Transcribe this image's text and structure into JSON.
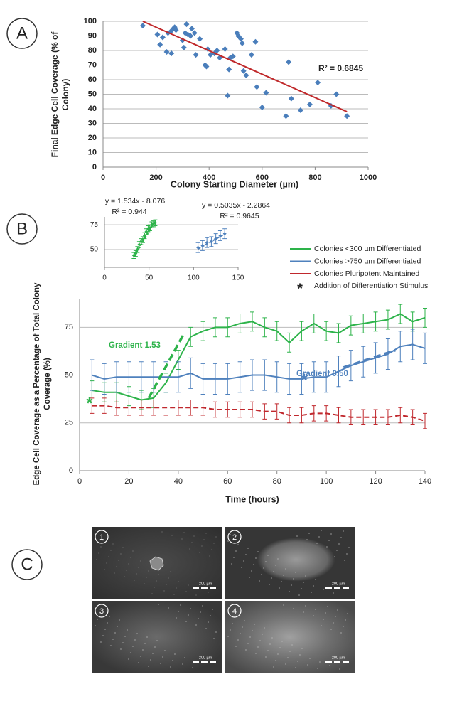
{
  "panel_labels": [
    "A",
    "B",
    "C"
  ],
  "chart_data": [
    {
      "type": "scatter",
      "xlabel": "Colony Starting Diameter (µm)",
      "ylabel": [
        "Final Edge Cell Coverage (% of",
        "Colony)"
      ],
      "xlim": [
        0,
        1000
      ],
      "xticks": [
        0,
        200,
        400,
        600,
        800,
        1000
      ],
      "ylim": [
        0,
        100
      ],
      "yticks": [
        0,
        10,
        20,
        30,
        40,
        50,
        60,
        70,
        80,
        90,
        100
      ],
      "grid": true,
      "color": "#4a7ebb",
      "x": [
        150,
        205,
        215,
        225,
        240,
        245,
        255,
        258,
        265,
        270,
        275,
        300,
        305,
        310,
        315,
        320,
        330,
        335,
        345,
        350,
        365,
        385,
        390,
        395,
        405,
        420,
        430,
        440,
        460,
        470,
        475,
        480,
        490,
        505,
        510,
        520,
        525,
        530,
        540,
        560,
        575,
        580,
        600,
        615,
        690,
        700,
        710,
        745,
        780,
        810,
        860,
        880,
        920
      ],
      "values": [
        97,
        91,
        84,
        89,
        79,
        92,
        93,
        78,
        95,
        96,
        94,
        87,
        82,
        92,
        98,
        91,
        90,
        95,
        92,
        77,
        88,
        70,
        69,
        81,
        77,
        78,
        80,
        75,
        81,
        49,
        67,
        75,
        76,
        92,
        90,
        88,
        85,
        66,
        63,
        77,
        86,
        55,
        41,
        51,
        35,
        72,
        47,
        39,
        43,
        58,
        42,
        50,
        35
      ],
      "trendline": {
        "color": "#c0292b",
        "x": [
          150,
          920
        ],
        "values": [
          100,
          38
        ],
        "label": "R² = 0.6845"
      }
    },
    {
      "type": "line",
      "xlabel": "Time (hours)",
      "ylabel": [
        "Edge Cell Coverage as a Percentage of Total Colony",
        "Coverage (%)"
      ],
      "xlim": [
        0,
        140
      ],
      "xticks": [
        0,
        20,
        40,
        60,
        80,
        100,
        120,
        140
      ],
      "ylim": [
        0,
        90
      ],
      "yticks": [
        0,
        25,
        50,
        75
      ],
      "grid": true,
      "x": [
        5,
        10,
        15,
        20,
        25,
        30,
        35,
        40,
        45,
        50,
        55,
        60,
        65,
        70,
        75,
        80,
        85,
        90,
        95,
        100,
        105,
        110,
        115,
        120,
        125,
        130,
        135,
        140
      ],
      "series": [
        {
          "name": "Colonies <300 µm Differentiated",
          "color": "#2db34a",
          "dashed": false,
          "values": [
            42,
            41,
            41,
            39,
            37,
            38,
            46,
            58,
            70,
            73,
            75,
            75,
            77,
            78,
            75,
            73,
            67,
            73,
            77,
            73,
            72,
            76,
            77,
            78,
            79,
            82,
            78,
            80
          ],
          "errors": [
            5,
            5,
            5,
            5,
            5,
            5,
            5,
            5,
            5,
            5,
            5,
            5,
            5,
            5,
            5,
            5,
            5,
            5,
            5,
            5,
            5,
            5,
            5,
            5,
            5,
            5,
            5,
            5
          ]
        },
        {
          "name": "Colonies >750 µm Differentiated",
          "color": "#4f81bd",
          "dashed": false,
          "values": [
            50,
            48,
            49,
            49,
            49,
            49,
            49,
            49,
            51,
            48,
            48,
            48,
            49,
            50,
            50,
            49,
            48,
            48,
            49,
            49,
            52,
            55,
            57,
            59,
            61,
            65,
            66,
            64
          ],
          "errors": [
            8,
            8,
            8,
            8,
            8,
            8,
            8,
            8,
            8,
            8,
            8,
            8,
            8,
            8,
            8,
            8,
            8,
            8,
            8,
            8,
            8,
            8,
            8,
            8,
            8,
            8,
            8,
            8
          ]
        },
        {
          "name": "Colonies Pluripotent Maintained",
          "color": "#c0282d",
          "dashed": true,
          "values": [
            34,
            34,
            33,
            33,
            33,
            33,
            33,
            33,
            33,
            33,
            32,
            32,
            32,
            32,
            31,
            31,
            29,
            29,
            30,
            30,
            29,
            28,
            28,
            28,
            28,
            29,
            28,
            26
          ],
          "errors": [
            4,
            4,
            4,
            4,
            4,
            4,
            4,
            4,
            4,
            4,
            4,
            4,
            4,
            4,
            4,
            4,
            4,
            4,
            4,
            4,
            4,
            4,
            4,
            4,
            4,
            4,
            4,
            4
          ]
        }
      ],
      "stimulus": {
        "marker": "*",
        "label": "Addition of Differentiation Stimulus",
        "points": [
          {
            "x": 4,
            "y": 37,
            "color": "#2db34a"
          },
          {
            "x": 91,
            "y": 49,
            "color": "#4f81bd"
          }
        ]
      },
      "gradient_lines": [
        {
          "label": "Gradient 1.53",
          "color": "#2db34a",
          "x": [
            28,
            42
          ],
          "values": [
            38,
            71
          ]
        },
        {
          "label": "Gradient 0.50",
          "color": "#4f81bd",
          "x": [
            107,
            128
          ],
          "values": [
            54,
            63
          ]
        }
      ]
    },
    {
      "type": "scatter",
      "xlim": [
        0,
        150
      ],
      "xticks": [
        0,
        50,
        100,
        150
      ],
      "ylim": [
        32,
        83
      ],
      "yticks": [
        50,
        75
      ],
      "grid": true,
      "series": [
        {
          "color": "#2db34a",
          "x": [
            33,
            35,
            37,
            39,
            41,
            43,
            45,
            47,
            49,
            51,
            53,
            55,
            57
          ],
          "values": [
            44,
            46,
            50,
            55,
            58,
            60,
            64,
            68,
            71,
            72,
            75,
            76,
            77
          ],
          "errors": [
            3,
            3,
            3,
            3,
            3,
            3,
            3,
            3,
            3,
            3,
            3,
            3,
            3
          ],
          "fit": {
            "x": [
              33,
              57
            ],
            "values": [
              42.5,
              79.4
            ]
          },
          "equation": "y = 1.534x - 8.076",
          "r2": "R² = 0.944"
        },
        {
          "color": "#4f81bd",
          "x": [
            105,
            110,
            115,
            120,
            125,
            130,
            135
          ],
          "values": [
            52,
            54,
            57,
            58,
            61,
            64,
            66
          ],
          "errors": [
            5,
            5,
            5,
            5,
            5,
            5,
            5
          ],
          "fit": {
            "x": [
              105,
              135
            ],
            "values": [
              50.6,
              65.7
            ]
          },
          "equation": "y = 0.5035x - 2.2864",
          "r2": "R² = 0.9645"
        }
      ]
    }
  ],
  "micrographs": {
    "labels": [
      "1",
      "2",
      "3",
      "4"
    ],
    "scale_label": "200 µm"
  }
}
